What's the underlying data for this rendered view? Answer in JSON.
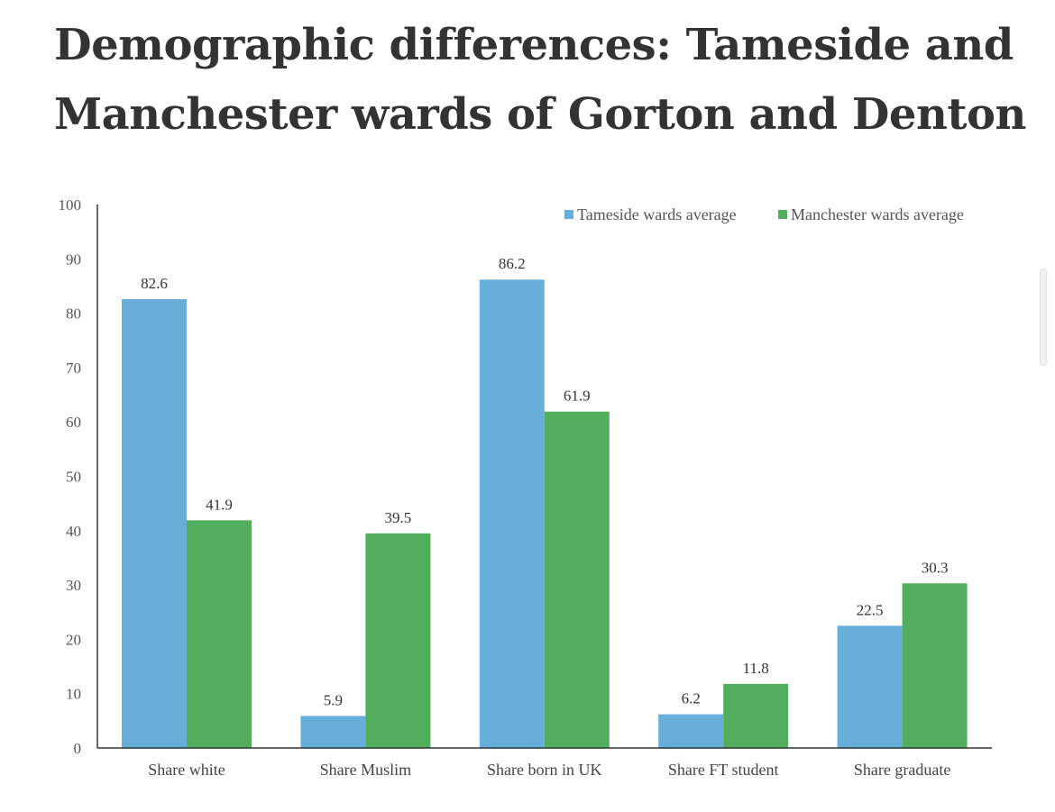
{
  "chart_data": {
    "type": "bar",
    "title": "Demographic differences: Tameside and Manchester wards of Gorton and Denton",
    "categories": [
      "Share white",
      "Share Muslim",
      "Share born in UK",
      "Share FT student",
      "Share graduate"
    ],
    "series": [
      {
        "name": "Tameside wards average",
        "values": [
          82.6,
          5.9,
          86.2,
          6.2,
          22.5
        ],
        "color": "#67aedb"
      },
      {
        "name": "Manchester wards average",
        "values": [
          41.9,
          39.5,
          61.9,
          11.8,
          30.3
        ],
        "color": "#52ad5c"
      }
    ],
    "data_labels": [
      [
        "82.6",
        "5.9",
        "86.2",
        "6.2",
        "22.5"
      ],
      [
        "41.9",
        "39.5",
        "61.9",
        "11.8",
        "30.3"
      ]
    ],
    "xlabel": "",
    "ylabel": "",
    "ylim": [
      0,
      100
    ],
    "yticks": [
      "0",
      "10",
      "20",
      "30",
      "40",
      "50",
      "60",
      "70",
      "80",
      "90",
      "100"
    ],
    "grid": false,
    "legend_position": "top-right"
  }
}
